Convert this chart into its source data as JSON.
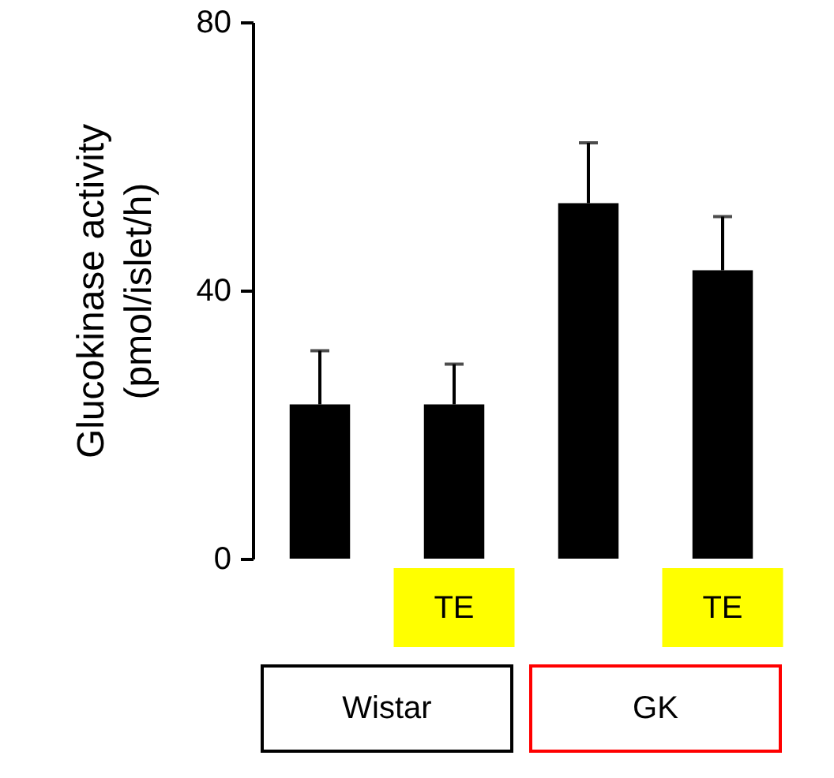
{
  "chart_data": {
    "type": "bar",
    "ylabel": "Glucokinase activity\n(pmol/islet/h)",
    "categories": [
      null,
      "TE",
      null,
      "TE"
    ],
    "values": [
      23,
      23,
      53,
      43
    ],
    "errors": [
      [
        23,
        31
      ],
      [
        23,
        29
      ],
      [
        53,
        62
      ],
      [
        43,
        51
      ]
    ],
    "color": "#000000",
    "ylim": [
      0,
      80
    ],
    "yticks": [
      0,
      40,
      80
    ],
    "grid": false,
    "annotations": [
      "Wistar",
      "GK"
    ]
  }
}
